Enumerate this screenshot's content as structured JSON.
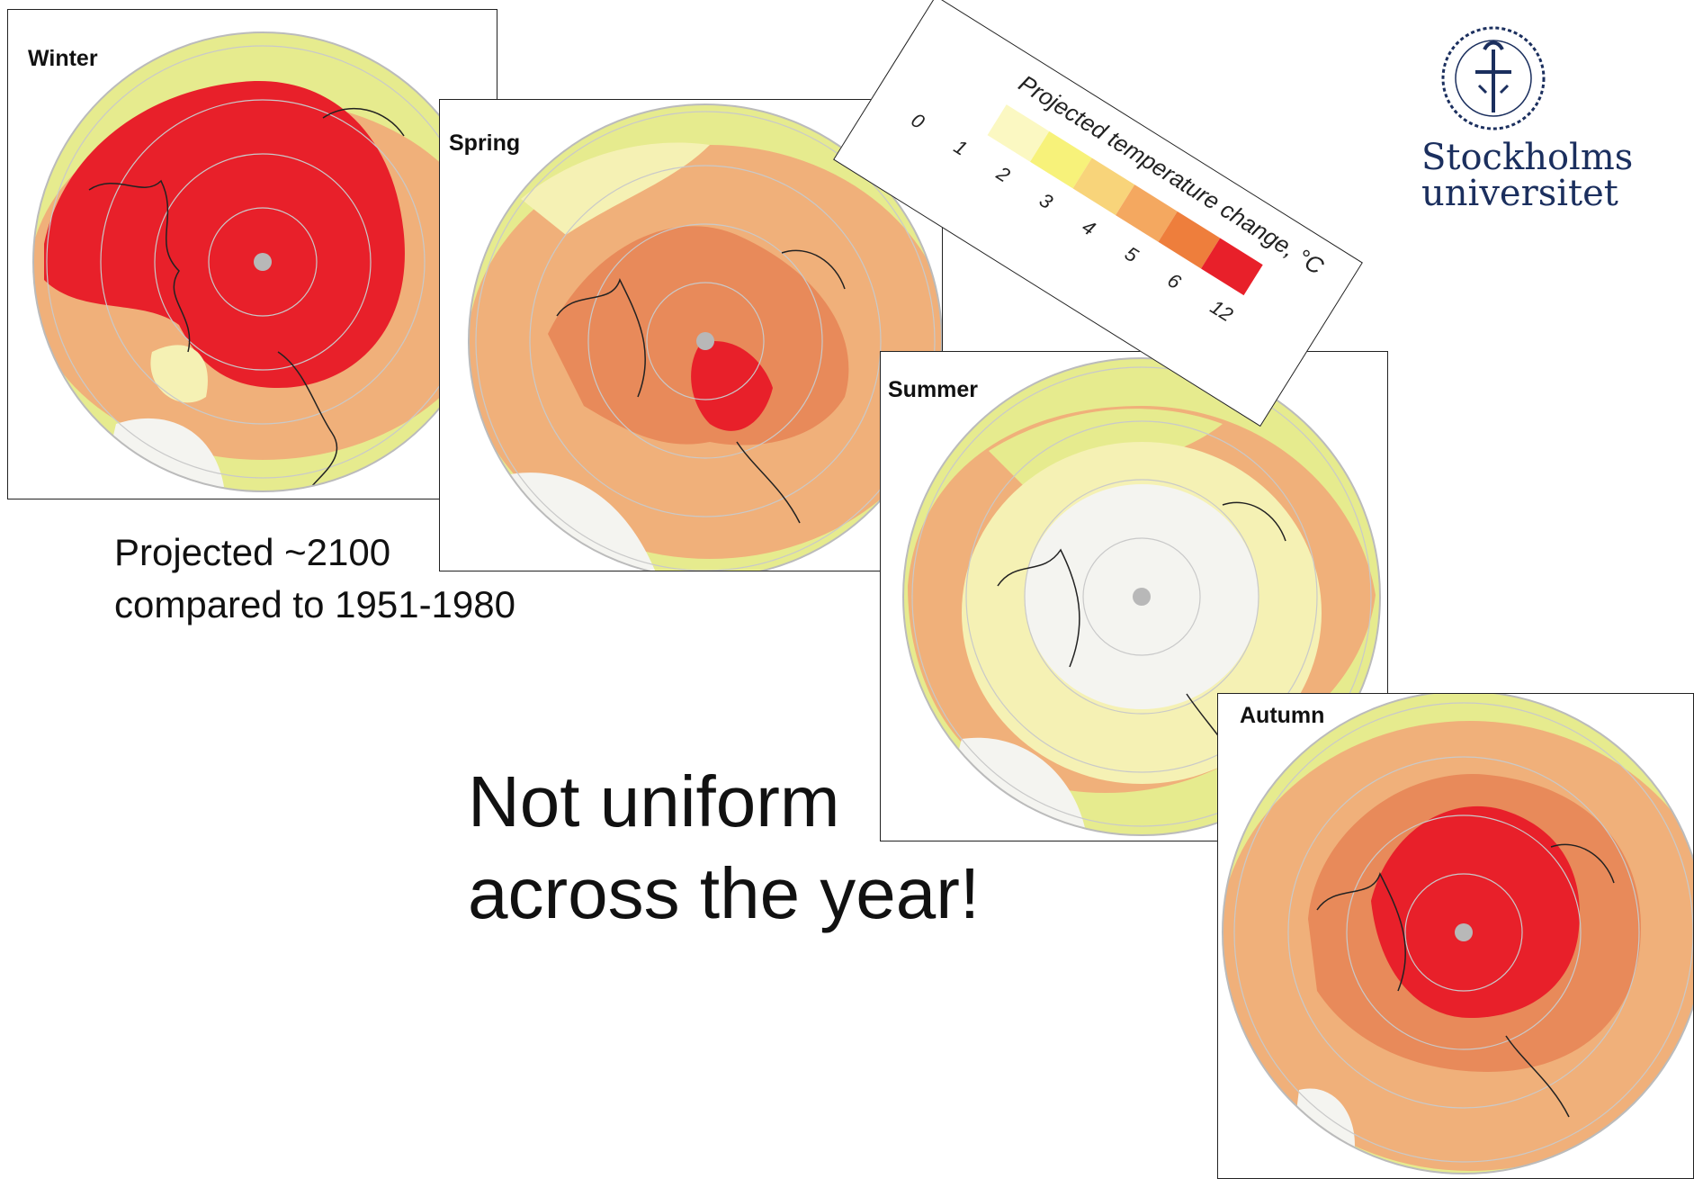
{
  "panels": [
    {
      "id": "winter",
      "title": "Winter"
    },
    {
      "id": "spring",
      "title": "Spring"
    },
    {
      "id": "summer",
      "title": "Summer"
    },
    {
      "id": "autumn",
      "title": "Autumn"
    }
  ],
  "legend": {
    "title": "Projected temperature change, °C",
    "ticks": [
      "0",
      "1",
      "2",
      "3",
      "4",
      "5",
      "6",
      "12"
    ],
    "colors": [
      "#fbf8c2",
      "#f7f27a",
      "#f8d47a",
      "#f4a860",
      "#ee7e3c",
      "#e8202a"
    ]
  },
  "caption": {
    "line1": "Projected ~2100",
    "line2": "compared to 1951-1980"
  },
  "headline": {
    "line1": "Not uniform",
    "line2": "across the year!"
  },
  "logo": {
    "line1": "Stockholms",
    "line2": "universitet",
    "seal_text": "STOCKHOLMS UNIVERSITET"
  },
  "map_colors": {
    "ocean_bg": "#e6eb8e",
    "light": "#f5f1b4",
    "mid": "#f0b07a",
    "strong": "#e88a5a",
    "hot": "#e8202a",
    "white": "#f4f4f0",
    "grid": "#c9c9c9",
    "coast": "#222222"
  }
}
